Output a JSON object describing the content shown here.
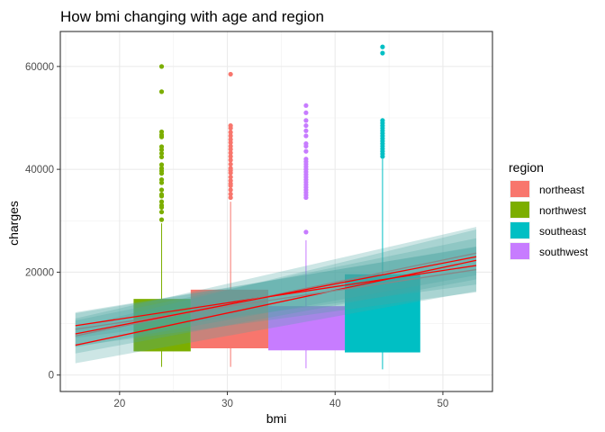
{
  "chart_data": {
    "type": "boxplot",
    "title": "How bmi changing with age and region",
    "xlabel": "bmi",
    "ylabel": "charges",
    "xlim": [
      14.5,
      54.6
    ],
    "ylim": [
      -3200,
      66800
    ],
    "x_ticks": [
      20,
      30,
      40,
      50
    ],
    "y_ticks": [
      0,
      20000,
      40000,
      60000
    ],
    "grid": true,
    "legend": {
      "title": "region",
      "position": "right",
      "entries": [
        {
          "name": "northeast",
          "color": "#F8766D"
        },
        {
          "name": "northwest",
          "color": "#7CAE00"
        },
        {
          "name": "southeast",
          "color": "#00BFC4"
        },
        {
          "name": "southwest",
          "color": "#C77CFF"
        }
      ]
    },
    "boxes": [
      {
        "region": "northwest",
        "color": "#7CAE00",
        "x_left": 21.3,
        "x_right": 26.6,
        "x_center": 23.9,
        "lower": 4600,
        "median": 4600,
        "upper": 14800,
        "whisker_low": 1600,
        "whisker_high": 29500,
        "outliers": [
          30200,
          31700,
          32600,
          33000,
          33700,
          34800,
          35100,
          36000,
          37400,
          38000,
          39200,
          39700,
          40200,
          40900,
          42400,
          43100,
          43800,
          44400,
          46300,
          46700,
          47300,
          55100,
          60000
        ]
      },
      {
        "region": "northeast",
        "color": "#F8766D",
        "x_left": 26.6,
        "x_right": 33.8,
        "x_center": 30.3,
        "lower": 5200,
        "median": 5200,
        "upper": 16600,
        "whisker_low": 1600,
        "whisker_high": 33700,
        "outliers": [
          34500,
          35200,
          36000,
          36800,
          37200,
          37800,
          38500,
          39300,
          39800,
          40200,
          41000,
          41800,
          42500,
          43200,
          43900,
          44500,
          45200,
          45800,
          46500,
          47200,
          48000,
          48500,
          58500
        ]
      },
      {
        "region": "southwest",
        "color": "#C77CFF",
        "x_left": 33.8,
        "x_right": 40.9,
        "x_center": 37.3,
        "lower": 4800,
        "median": 4800,
        "upper": 13400,
        "whisker_low": 1300,
        "whisker_high": 26200,
        "outliers": [
          27800,
          34500,
          35000,
          35500,
          36000,
          36500,
          37000,
          37500,
          38000,
          38500,
          39000,
          39500,
          40000,
          40500,
          41000,
          41500,
          42000,
          43500,
          44500,
          45000,
          46500,
          47500,
          48500,
          49500,
          51000,
          52400
        ]
      },
      {
        "region": "southeast",
        "color": "#00BFC4",
        "x_left": 40.9,
        "x_right": 47.9,
        "x_center": 44.4,
        "lower": 4400,
        "median": 4400,
        "upper": 19600,
        "whisker_low": 1100,
        "whisker_high": 42000,
        "outliers": [
          42500,
          43000,
          43500,
          44000,
          44500,
          45000,
          45500,
          46000,
          46500,
          47000,
          47500,
          48000,
          48500,
          49000,
          49500,
          62600,
          63800
        ]
      }
    ],
    "trend_lines": [
      {
        "color": "#FF0000",
        "band": "#4da7a3",
        "x": [
          15.9,
          53.1
        ],
        "y": [
          5800,
          22300
        ],
        "band_low": [
          2300,
          16300
        ],
        "band_high": [
          9300,
          28300
        ]
      },
      {
        "color": "#FF0000",
        "band": "#4da7a3",
        "x": [
          15.9,
          53.1
        ],
        "y": [
          9600,
          21300
        ],
        "band_low": [
          7200,
          17600
        ],
        "band_high": [
          12000,
          25000
        ]
      },
      {
        "color": "#888888",
        "band": "#4da7a3",
        "x": [
          15.9,
          53.1
        ],
        "y": [
          7600,
          23700
        ],
        "band_low": [
          4200,
          18600
        ],
        "band_high": [
          11000,
          28800
        ]
      },
      {
        "color": "#888888",
        "band": "#4da7a3",
        "x": [
          15.9,
          53.1
        ],
        "y": [
          8900,
          20500
        ],
        "band_low": [
          5600,
          16100
        ],
        "band_high": [
          12200,
          24900
        ]
      },
      {
        "color": "#FF0000",
        "band": "#4da7a3",
        "x": [
          15.9,
          53.1
        ],
        "y": [
          8000,
          23000
        ],
        "band_low": [
          5400,
          19400
        ],
        "band_high": [
          10600,
          26600
        ]
      }
    ]
  }
}
